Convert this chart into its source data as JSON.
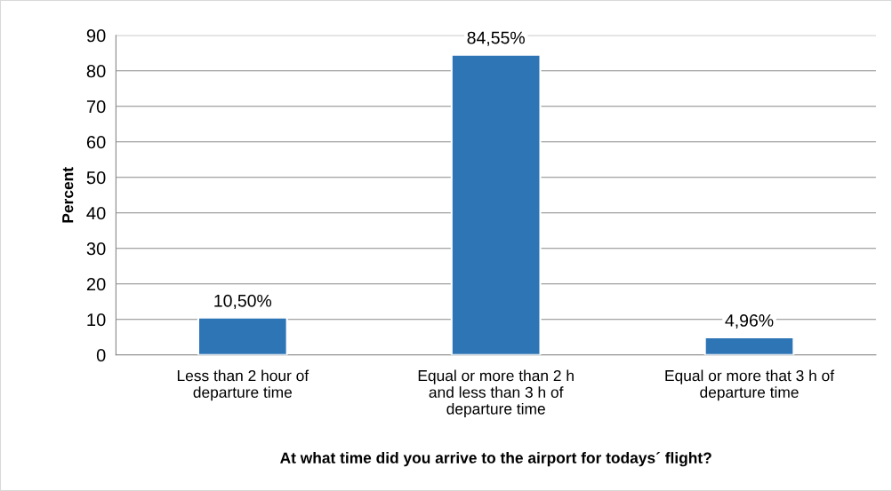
{
  "chart_data": {
    "type": "bar",
    "xlabel": "At what time did you arrive to the airport for todays´ flight?",
    "ylabel": "Percent",
    "categories": [
      "Less than 2 hour of\ndeparture time",
      "Equal or more than 2 h\nand less than 3 h of\ndeparture time",
      "Equal or more that 3 h of\ndeparture time"
    ],
    "values": [
      10.5,
      84.55,
      4.96
    ],
    "value_labels": [
      "10,50%",
      "84,55%",
      "4,96%"
    ],
    "color": "#2e75b6",
    "ylim": [
      0,
      90
    ],
    "yticks": [
      0,
      10,
      20,
      30,
      40,
      50,
      60,
      70,
      80,
      90
    ],
    "grid": "y",
    "legend": false
  }
}
